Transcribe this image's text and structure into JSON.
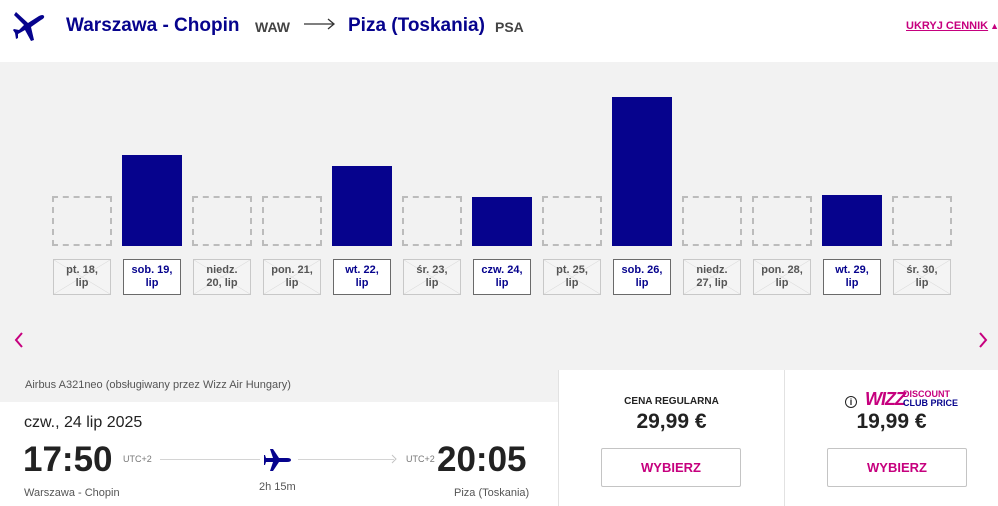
{
  "header": {
    "from_city": "Warszawa - Chopin",
    "from_code": "WAW",
    "to_city": "Piza (Toskania)",
    "to_code": "PSA",
    "hide_prices_label": "UKRYJ CENNIK"
  },
  "chart_data": {
    "type": "bar",
    "title": "",
    "categories": [
      "pt. 18, lip",
      "sob. 19, lip",
      "niedz. 20, lip",
      "pon. 21, lip",
      "wt. 22, lip",
      "śr. 23, lip",
      "czw. 24, lip",
      "pt. 25, lip",
      "sob. 26, lip",
      "niedz. 27, lip",
      "pon. 28, lip",
      "wt. 29, lip",
      "śr. 30, lip"
    ],
    "date_labels": [
      {
        "day": "pt. 18,",
        "month": "lip",
        "available": false
      },
      {
        "day": "sob. 19,",
        "month": "lip",
        "available": true
      },
      {
        "day": "niedz.",
        "month": "20, lip",
        "available": false
      },
      {
        "day": "pon. 21,",
        "month": "lip",
        "available": false
      },
      {
        "day": "wt. 22,",
        "month": "lip",
        "available": true
      },
      {
        "day": "śr. 23,",
        "month": "lip",
        "available": false
      },
      {
        "day": "czw. 24,",
        "month": "lip",
        "available": true
      },
      {
        "day": "pt. 25,",
        "month": "lip",
        "available": false
      },
      {
        "day": "sob. 26,",
        "month": "lip",
        "available": true
      },
      {
        "day": "niedz.",
        "month": "27, lip",
        "available": false
      },
      {
        "day": "pon. 28,",
        "month": "lip",
        "available": false
      },
      {
        "day": "wt. 29,",
        "month": "lip",
        "available": true
      },
      {
        "day": "śr. 30,",
        "month": "lip",
        "available": false
      }
    ],
    "values": [
      null,
      59,
      null,
      null,
      52,
      null,
      32,
      null,
      97,
      null,
      null,
      33,
      null
    ],
    "ylim": [
      0,
      100
    ],
    "selected_index": 6,
    "bar_color": "#06038d"
  },
  "flight": {
    "aircraft": "Airbus A321neo (obsługiwany przez Wizz Air Hungary)",
    "date": "czw., 24 lip 2025",
    "departure_time": "17:50",
    "arrival_time": "20:05",
    "departure_utc": "UTC+2",
    "arrival_utc": "UTC+2",
    "duration": "2h 15m",
    "departure_city": "Warszawa - Chopin",
    "arrival_city": "Piza (Toskania)"
  },
  "prices": {
    "regular_label": "CENA REGULARNA",
    "regular_price": "29,99 €",
    "regular_button": "WYBIERZ",
    "club_logo_wizz": "WIZZ",
    "club_logo_line1": "DISCOUNT",
    "club_logo_line2": "CLUB PRICE",
    "club_price": "19,99 €",
    "club_button": "WYBIERZ",
    "info_glyph": "i"
  },
  "colors": {
    "brand_navy": "#06038d",
    "brand_pink": "#c6007e"
  }
}
